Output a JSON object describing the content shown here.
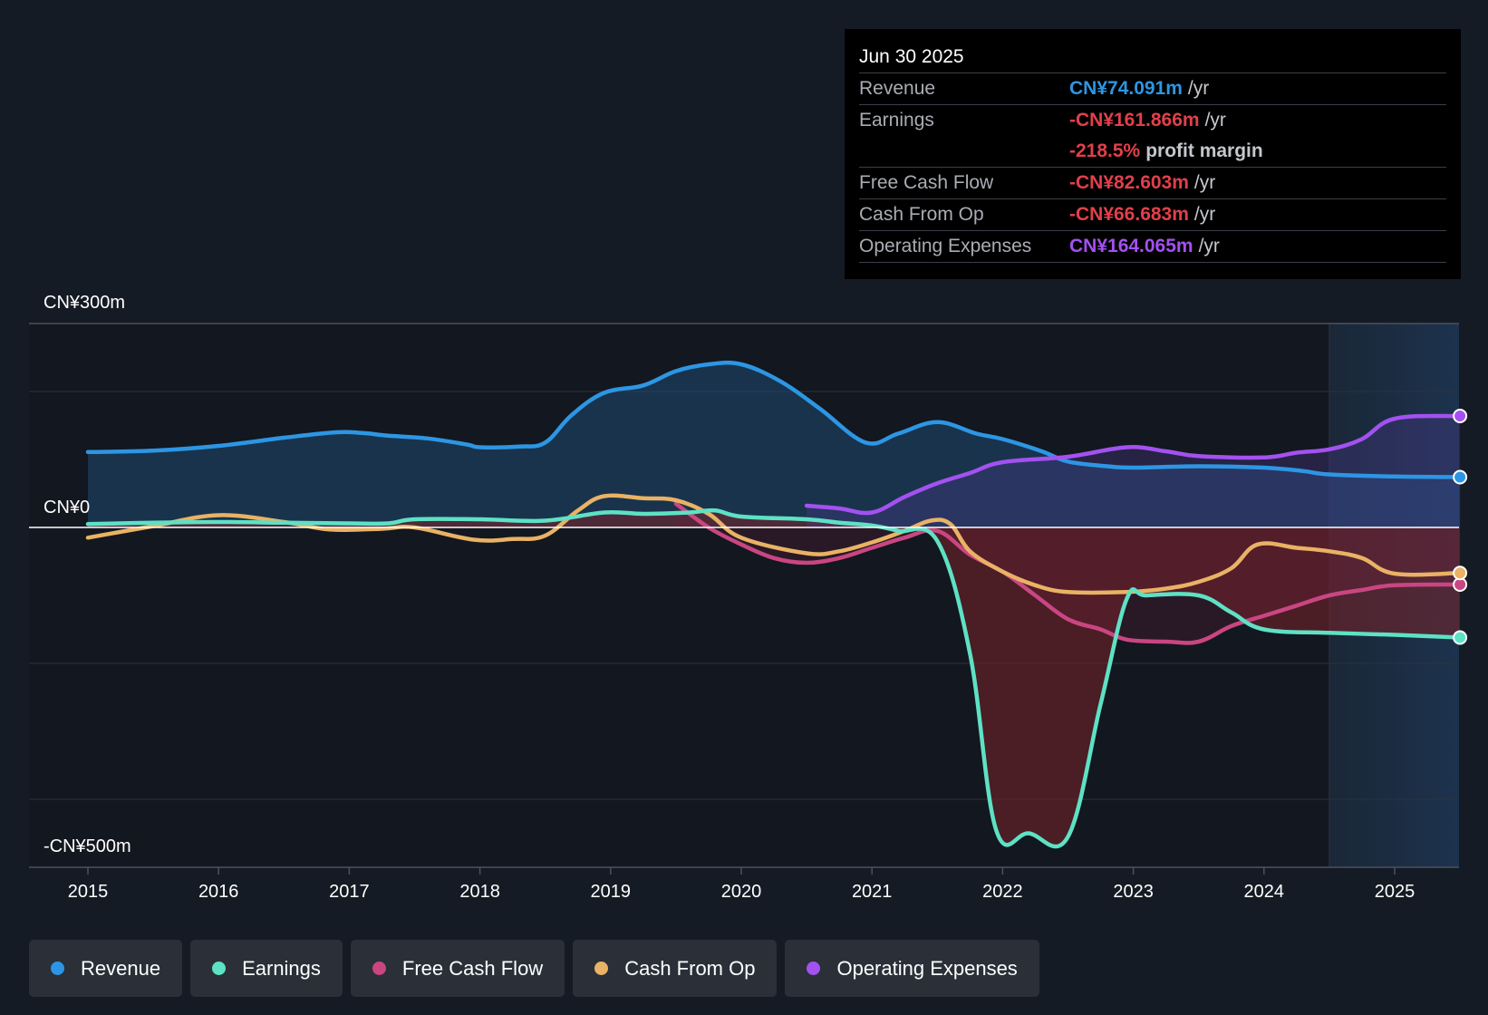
{
  "chart_data": {
    "type": "line",
    "y_unit": "CN¥m",
    "ylim": [
      -500,
      300
    ],
    "y_axis_labels": {
      "top": "CN¥300m",
      "zero": "CN¥0",
      "bottom": "-CN¥500m"
    },
    "gridlines": [
      300,
      200,
      0,
      -200,
      -400
    ],
    "x_ticks": [
      "2015",
      "2016",
      "2017",
      "2018",
      "2019",
      "2020",
      "2021",
      "2022",
      "2023",
      "2024",
      "2025"
    ],
    "x_tick_values": [
      2015,
      2016,
      2017,
      2018,
      2019,
      2020,
      2021,
      2022,
      2023,
      2024,
      2025
    ],
    "xlim": [
      2014.55,
      2025.5
    ],
    "forecast_start": 2024.5,
    "series": [
      {
        "name": "Revenue",
        "key": "revenue",
        "color": "#2d96e4",
        "fill": true,
        "points": [
          [
            2015.0,
            111
          ],
          [
            2015.5,
            113
          ],
          [
            2016.0,
            120
          ],
          [
            2016.5,
            132
          ],
          [
            2016.9,
            140
          ],
          [
            2017.1,
            139
          ],
          [
            2017.3,
            135
          ],
          [
            2017.6,
            131
          ],
          [
            2017.9,
            122
          ],
          [
            2018.0,
            118
          ],
          [
            2018.3,
            119
          ],
          [
            2018.5,
            125
          ],
          [
            2018.7,
            165
          ],
          [
            2018.95,
            198
          ],
          [
            2019.25,
            209
          ],
          [
            2019.5,
            230
          ],
          [
            2019.75,
            240
          ],
          [
            2020.0,
            240
          ],
          [
            2020.3,
            215
          ],
          [
            2020.6,
            175
          ],
          [
            2020.95,
            125
          ],
          [
            2021.2,
            138
          ],
          [
            2021.5,
            155
          ],
          [
            2021.8,
            138
          ],
          [
            2022.0,
            130
          ],
          [
            2022.3,
            112
          ],
          [
            2022.5,
            97
          ],
          [
            2022.8,
            90
          ],
          [
            2023.0,
            88
          ],
          [
            2023.5,
            90
          ],
          [
            2024.0,
            88
          ],
          [
            2024.3,
            83
          ],
          [
            2024.5,
            78
          ],
          [
            2025.0,
            75
          ],
          [
            2025.5,
            74
          ]
        ]
      },
      {
        "name": "Earnings",
        "key": "earnings",
        "color": "#5ee1c4",
        "fill": true,
        "points": [
          [
            2015.0,
            5
          ],
          [
            2015.5,
            7
          ],
          [
            2016.0,
            8
          ],
          [
            2016.5,
            7
          ],
          [
            2017.0,
            6
          ],
          [
            2017.3,
            6
          ],
          [
            2017.5,
            12
          ],
          [
            2018.0,
            12
          ],
          [
            2018.5,
            10
          ],
          [
            2018.95,
            22
          ],
          [
            2019.25,
            20
          ],
          [
            2019.6,
            22
          ],
          [
            2019.8,
            25
          ],
          [
            2020.0,
            16
          ],
          [
            2020.5,
            12
          ],
          [
            2020.75,
            7
          ],
          [
            2021.0,
            3
          ],
          [
            2021.2,
            -5
          ],
          [
            2021.5,
            -20
          ],
          [
            2021.75,
            -185
          ],
          [
            2021.95,
            -445
          ],
          [
            2022.2,
            -450
          ],
          [
            2022.5,
            -455
          ],
          [
            2022.75,
            -260
          ],
          [
            2022.95,
            -105
          ],
          [
            2023.1,
            -100
          ],
          [
            2023.5,
            -100
          ],
          [
            2023.75,
            -125
          ],
          [
            2024.0,
            -150
          ],
          [
            2024.5,
            -155
          ],
          [
            2025.0,
            -158
          ],
          [
            2025.5,
            -162
          ]
        ]
      },
      {
        "name": "Free Cash Flow",
        "key": "fcf",
        "color": "#c94682",
        "fill": true,
        "points": [
          [
            2019.5,
            35
          ],
          [
            2019.75,
            0
          ],
          [
            2020.0,
            -25
          ],
          [
            2020.25,
            -45
          ],
          [
            2020.5,
            -52
          ],
          [
            2020.75,
            -45
          ],
          [
            2021.0,
            -30
          ],
          [
            2021.25,
            -15
          ],
          [
            2021.5,
            -5
          ],
          [
            2021.75,
            -40
          ],
          [
            2022.0,
            -65
          ],
          [
            2022.25,
            -100
          ],
          [
            2022.5,
            -135
          ],
          [
            2022.75,
            -150
          ],
          [
            2022.95,
            -165
          ],
          [
            2023.25,
            -168
          ],
          [
            2023.5,
            -168
          ],
          [
            2023.75,
            -145
          ],
          [
            2024.0,
            -130
          ],
          [
            2024.25,
            -115
          ],
          [
            2024.5,
            -100
          ],
          [
            2024.75,
            -92
          ],
          [
            2025.0,
            -85
          ],
          [
            2025.5,
            -84
          ]
        ]
      },
      {
        "name": "Cash From Op",
        "key": "cfo",
        "color": "#e9b264",
        "fill": false,
        "points": [
          [
            2015.0,
            -15
          ],
          [
            2015.5,
            2
          ],
          [
            2016.0,
            18
          ],
          [
            2016.5,
            8
          ],
          [
            2016.85,
            -3
          ],
          [
            2017.25,
            -2
          ],
          [
            2017.5,
            0
          ],
          [
            2017.95,
            -18
          ],
          [
            2018.25,
            -17
          ],
          [
            2018.5,
            -12
          ],
          [
            2018.75,
            25
          ],
          [
            2018.95,
            46
          ],
          [
            2019.25,
            43
          ],
          [
            2019.5,
            40
          ],
          [
            2019.75,
            20
          ],
          [
            2020.0,
            -15
          ],
          [
            2020.5,
            -38
          ],
          [
            2020.75,
            -35
          ],
          [
            2021.0,
            -22
          ],
          [
            2021.25,
            -5
          ],
          [
            2021.45,
            10
          ],
          [
            2021.6,
            5
          ],
          [
            2021.75,
            -35
          ],
          [
            2022.0,
            -65
          ],
          [
            2022.25,
            -85
          ],
          [
            2022.5,
            -95
          ],
          [
            2022.95,
            -95
          ],
          [
            2023.25,
            -90
          ],
          [
            2023.5,
            -80
          ],
          [
            2023.75,
            -60
          ],
          [
            2023.95,
            -25
          ],
          [
            2024.25,
            -30
          ],
          [
            2024.5,
            -35
          ],
          [
            2024.75,
            -45
          ],
          [
            2025.0,
            -68
          ],
          [
            2025.5,
            -67
          ]
        ]
      },
      {
        "name": "Operating Expenses",
        "key": "opex",
        "color": "#a351f0",
        "fill": true,
        "points": [
          [
            2020.5,
            32
          ],
          [
            2020.75,
            28
          ],
          [
            2021.0,
            22
          ],
          [
            2021.25,
            45
          ],
          [
            2021.5,
            65
          ],
          [
            2021.75,
            80
          ],
          [
            2022.0,
            96
          ],
          [
            2022.5,
            104
          ],
          [
            2022.95,
            118
          ],
          [
            2023.25,
            112
          ],
          [
            2023.5,
            105
          ],
          [
            2024.0,
            103
          ],
          [
            2024.25,
            110
          ],
          [
            2024.5,
            115
          ],
          [
            2024.75,
            130
          ],
          [
            2025.0,
            160
          ],
          [
            2025.5,
            164
          ]
        ]
      }
    ]
  },
  "tooltip": {
    "date": "Jun 30 2025",
    "rows": [
      {
        "label": "Revenue",
        "value": "CN¥74.091m",
        "suffix": "/yr",
        "color": "#2d96e4"
      },
      {
        "label": "Earnings",
        "value": "-CN¥161.866m",
        "suffix": "/yr",
        "color": "#e0404b"
      },
      {
        "label": "",
        "value": "-218.5%",
        "suffix": "profit margin",
        "color": "#e0404b"
      },
      {
        "label": "Free Cash Flow",
        "value": "-CN¥82.603m",
        "suffix": "/yr",
        "color": "#e0404b"
      },
      {
        "label": "Cash From Op",
        "value": "-CN¥66.683m",
        "suffix": "/yr",
        "color": "#e0404b"
      },
      {
        "label": "Operating Expenses",
        "value": "CN¥164.065m",
        "suffix": "/yr",
        "color": "#a351f0"
      }
    ]
  },
  "legend": {
    "items": [
      {
        "label": "Revenue",
        "color": "#2d96e4"
      },
      {
        "label": "Earnings",
        "color": "#5ee1c4"
      },
      {
        "label": "Free Cash Flow",
        "color": "#c94682"
      },
      {
        "label": "Cash From Op",
        "color": "#e9b264"
      },
      {
        "label": "Operating Expenses",
        "color": "#a351f0"
      }
    ]
  }
}
